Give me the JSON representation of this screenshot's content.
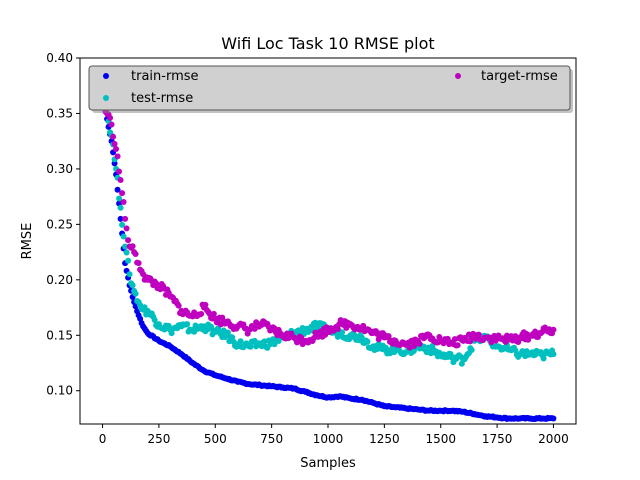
{
  "chart_data": {
    "type": "scatter",
    "title": "Wifi Loc Task 10 RMSE plot",
    "xlabel": "Samples",
    "ylabel": "RMSE",
    "xlim": [
      -100,
      2100
    ],
    "ylim": [
      0.07,
      0.4
    ],
    "xticks": [
      0,
      250,
      500,
      750,
      1000,
      1250,
      1500,
      1750,
      2000
    ],
    "yticks": [
      0.1,
      0.15,
      0.2,
      0.25,
      0.3,
      0.35,
      0.4
    ],
    "xtick_labels": [
      "0",
      "250",
      "500",
      "750",
      "1000",
      "1250",
      "1500",
      "1750",
      "2000"
    ],
    "ytick_labels": [
      "0.10",
      "0.15",
      "0.20",
      "0.25",
      "0.30",
      "0.35",
      "0.40"
    ],
    "legend_position": "top (two columns, gray box)",
    "series": [
      {
        "name": "train-rmse",
        "color": "#0000ee",
        "points": [
          [
            0,
            0.365
          ],
          [
            20,
            0.345
          ],
          [
            40,
            0.325
          ],
          [
            60,
            0.295
          ],
          [
            80,
            0.255
          ],
          [
            100,
            0.215
          ],
          [
            120,
            0.195
          ],
          [
            140,
            0.18
          ],
          [
            160,
            0.168
          ],
          [
            180,
            0.158
          ],
          [
            200,
            0.152
          ],
          [
            250,
            0.145
          ],
          [
            300,
            0.14
          ],
          [
            350,
            0.133
          ],
          [
            400,
            0.125
          ],
          [
            450,
            0.118
          ],
          [
            500,
            0.114
          ],
          [
            550,
            0.111
          ],
          [
            600,
            0.108
          ],
          [
            650,
            0.106
          ],
          [
            700,
            0.105
          ],
          [
            750,
            0.104
          ],
          [
            800,
            0.103
          ],
          [
            850,
            0.102
          ],
          [
            900,
            0.099
          ],
          [
            950,
            0.096
          ],
          [
            1000,
            0.094
          ],
          [
            1050,
            0.095
          ],
          [
            1100,
            0.093
          ],
          [
            1150,
            0.092
          ],
          [
            1200,
            0.089
          ],
          [
            1250,
            0.086
          ],
          [
            1300,
            0.085
          ],
          [
            1350,
            0.084
          ],
          [
            1400,
            0.083
          ],
          [
            1450,
            0.082
          ],
          [
            1500,
            0.082
          ],
          [
            1550,
            0.082
          ],
          [
            1600,
            0.081
          ],
          [
            1650,
            0.079
          ],
          [
            1700,
            0.077
          ],
          [
            1750,
            0.076
          ],
          [
            1800,
            0.075
          ],
          [
            1850,
            0.075
          ],
          [
            1900,
            0.075
          ],
          [
            1950,
            0.075
          ],
          [
            2000,
            0.075
          ]
        ]
      },
      {
        "name": "test-rmse",
        "color": "#00bfbf",
        "points": [
          [
            0,
            0.37
          ],
          [
            20,
            0.35
          ],
          [
            40,
            0.33
          ],
          [
            60,
            0.3
          ],
          [
            80,
            0.265
          ],
          [
            100,
            0.23
          ],
          [
            120,
            0.205
          ],
          [
            140,
            0.19
          ],
          [
            160,
            0.18
          ],
          [
            180,
            0.173
          ],
          [
            200,
            0.172
          ],
          [
            250,
            0.16
          ],
          [
            300,
            0.155
          ],
          [
            350,
            0.158
          ],
          [
            400,
            0.155
          ],
          [
            450,
            0.158
          ],
          [
            500,
            0.153
          ],
          [
            550,
            0.15
          ],
          [
            600,
            0.142
          ],
          [
            650,
            0.14
          ],
          [
            700,
            0.142
          ],
          [
            750,
            0.143
          ],
          [
            800,
            0.148
          ],
          [
            850,
            0.152
          ],
          [
            900,
            0.155
          ],
          [
            950,
            0.158
          ],
          [
            1000,
            0.155
          ],
          [
            1050,
            0.152
          ],
          [
            1100,
            0.15
          ],
          [
            1150,
            0.148
          ],
          [
            1200,
            0.14
          ],
          [
            1250,
            0.137
          ],
          [
            1300,
            0.138
          ],
          [
            1350,
            0.135
          ],
          [
            1400,
            0.14
          ],
          [
            1450,
            0.138
          ],
          [
            1500,
            0.132
          ],
          [
            1550,
            0.13
          ],
          [
            1600,
            0.128
          ],
          [
            1650,
            0.145
          ],
          [
            1700,
            0.148
          ],
          [
            1750,
            0.14
          ],
          [
            1800,
            0.137
          ],
          [
            1850,
            0.133
          ],
          [
            1900,
            0.133
          ],
          [
            1950,
            0.132
          ],
          [
            2000,
            0.133
          ]
        ]
      },
      {
        "name": "target-rmse",
        "color": "#bf00bf",
        "points": [
          [
            0,
            0.36
          ],
          [
            20,
            0.35
          ],
          [
            40,
            0.34
          ],
          [
            60,
            0.318
          ],
          [
            80,
            0.29
          ],
          [
            100,
            0.255
          ],
          [
            120,
            0.23
          ],
          [
            140,
            0.225
          ],
          [
            160,
            0.215
          ],
          [
            180,
            0.205
          ],
          [
            200,
            0.2
          ],
          [
            250,
            0.195
          ],
          [
            300,
            0.185
          ],
          [
            350,
            0.172
          ],
          [
            400,
            0.167
          ],
          [
            450,
            0.175
          ],
          [
            500,
            0.165
          ],
          [
            550,
            0.162
          ],
          [
            600,
            0.158
          ],
          [
            650,
            0.155
          ],
          [
            700,
            0.16
          ],
          [
            750,
            0.155
          ],
          [
            800,
            0.15
          ],
          [
            850,
            0.148
          ],
          [
            900,
            0.145
          ],
          [
            950,
            0.15
          ],
          [
            1000,
            0.155
          ],
          [
            1050,
            0.16
          ],
          [
            1100,
            0.16
          ],
          [
            1150,
            0.157
          ],
          [
            1200,
            0.152
          ],
          [
            1250,
            0.148
          ],
          [
            1300,
            0.145
          ],
          [
            1350,
            0.142
          ],
          [
            1400,
            0.145
          ],
          [
            1450,
            0.15
          ],
          [
            1500,
            0.145
          ],
          [
            1550,
            0.143
          ],
          [
            1600,
            0.145
          ],
          [
            1650,
            0.15
          ],
          [
            1700,
            0.148
          ],
          [
            1750,
            0.147
          ],
          [
            1800,
            0.146
          ],
          [
            1850,
            0.148
          ],
          [
            1900,
            0.15
          ],
          [
            1950,
            0.153
          ],
          [
            2000,
            0.155
          ]
        ]
      }
    ]
  }
}
